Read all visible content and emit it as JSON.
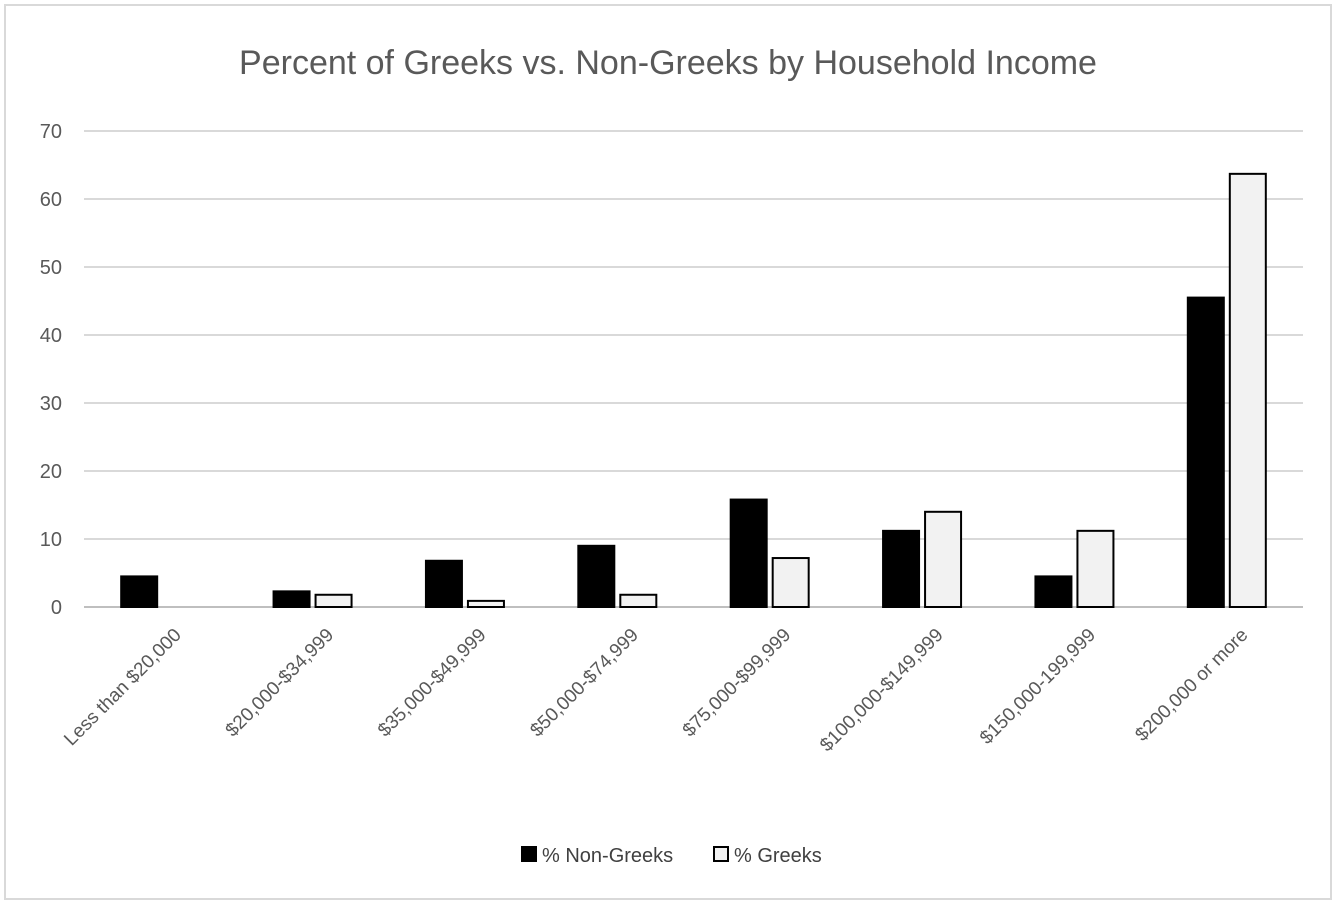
{
  "chart_data": {
    "type": "bar",
    "title": "Percent of Greeks vs. Non-Greeks by Household Income",
    "xlabel": "",
    "ylabel": "",
    "categories": [
      "Less than $20,000",
      "$20,000-$34,999",
      "$35,000-$49,999",
      "$50,000-$74,999",
      "$75,000-$99,999",
      "$100,000-$149,999",
      "$150,000-199,999",
      "$200,000 or more"
    ],
    "series": [
      {
        "name": "% Non-Greeks",
        "color": "#000000",
        "values": [
          4.5,
          2.3,
          6.8,
          9.0,
          15.8,
          11.2,
          4.5,
          45.5
        ]
      },
      {
        "name": "% Greeks",
        "color": "#f2f2f2",
        "values": [
          0,
          1.8,
          0.9,
          1.8,
          7.2,
          14.0,
          11.2,
          63.7
        ]
      }
    ],
    "ylim": [
      0,
      70
    ],
    "yticks": [
      0,
      10,
      20,
      30,
      40,
      50,
      60,
      70
    ],
    "grid": true,
    "legend_position": "bottom"
  }
}
